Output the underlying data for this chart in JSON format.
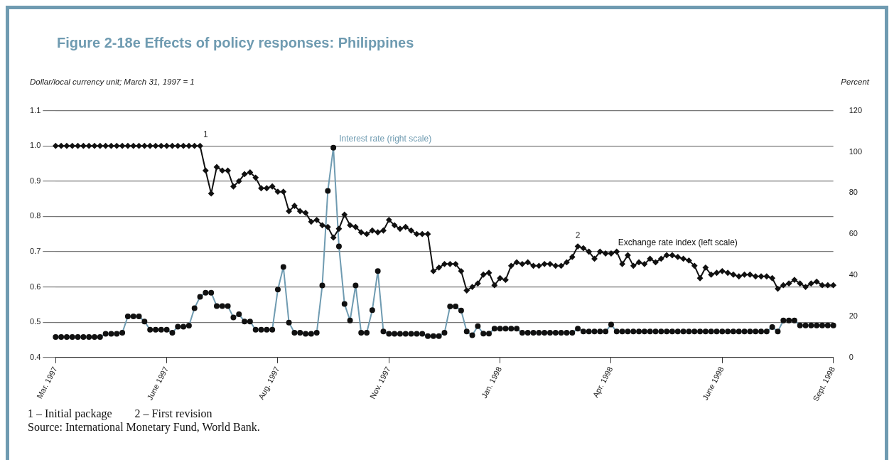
{
  "chart_data": {
    "type": "line",
    "title": "Figure 2-18e Effects of policy responses: Philippines",
    "ylabel": "Dollar/local currency unit; March 31, 1997 = 1",
    "y2label": "Percent",
    "categories": [
      "Mar. 1997",
      null,
      null,
      null,
      null,
      null,
      null,
      null,
      null,
      null,
      null,
      null,
      null,
      null,
      null,
      null,
      null,
      null,
      null,
      null,
      "June 1997",
      null,
      null,
      null,
      null,
      null,
      null,
      null,
      null,
      null,
      null,
      null,
      null,
      null,
      null,
      null,
      null,
      null,
      null,
      null,
      "Aug. 1997",
      null,
      null,
      null,
      null,
      null,
      null,
      null,
      null,
      null,
      null,
      null,
      null,
      null,
      null,
      null,
      null,
      null,
      null,
      null,
      "Nov. 1997",
      null,
      null,
      null,
      null,
      null,
      null,
      null,
      null,
      null,
      null,
      null,
      null,
      null,
      null,
      null,
      null,
      null,
      null,
      null,
      "Jan. 1998",
      null,
      null,
      null,
      null,
      null,
      null,
      null,
      null,
      null,
      null,
      null,
      null,
      null,
      null,
      null,
      null,
      null,
      null,
      null,
      "Apr. 1998",
      null,
      null,
      null,
      null,
      null,
      null,
      null,
      null,
      null,
      null,
      null,
      null,
      null,
      null,
      null,
      null,
      null,
      null,
      null,
      "June 1998",
      null,
      null,
      null,
      null,
      null,
      null,
      null,
      null,
      null,
      null,
      null,
      null,
      null,
      null,
      null,
      null,
      null,
      null,
      null,
      "Sept. 1998"
    ],
    "series": [
      {
        "name": "Exchange rate index (left scale)",
        "color": "#111111",
        "marker": "diamond",
        "values": [
          1.0,
          1.0,
          1.0,
          1.0,
          1.0,
          1.0,
          1.0,
          1.0,
          1.0,
          1.0,
          1.0,
          1.0,
          1.0,
          1.0,
          1.0,
          1.0,
          1.0,
          1.0,
          1.0,
          1.0,
          1.0,
          1.0,
          1.0,
          1.0,
          1.0,
          1.0,
          1.0,
          0.93,
          0.865,
          0.94,
          0.93,
          0.93,
          0.885,
          0.9,
          0.92,
          0.925,
          0.91,
          0.88,
          0.88,
          0.885,
          0.87,
          0.87,
          0.815,
          0.83,
          0.815,
          0.81,
          0.785,
          0.79,
          0.775,
          0.77,
          0.74,
          0.765,
          0.805,
          0.775,
          0.77,
          0.755,
          0.75,
          0.76,
          0.755,
          0.76,
          0.79,
          0.775,
          0.765,
          0.77,
          0.76,
          0.75,
          0.75,
          0.75,
          0.645,
          0.655,
          0.665,
          0.665,
          0.665,
          0.645,
          0.59,
          0.6,
          0.61,
          0.635,
          0.64,
          0.605,
          0.625,
          0.62,
          0.66,
          0.67,
          0.665,
          0.67,
          0.66,
          0.66,
          0.665,
          0.665,
          0.66,
          0.66,
          0.67,
          0.685,
          0.715,
          0.71,
          0.7,
          0.68,
          0.7,
          0.695,
          0.695,
          0.7,
          0.665,
          0.69,
          0.66,
          0.67,
          0.665,
          0.68,
          0.67,
          0.68,
          0.69,
          0.69,
          0.685,
          0.68,
          0.675,
          0.66,
          0.625,
          0.655,
          0.635,
          0.64,
          0.645,
          0.64,
          0.635,
          0.63,
          0.635,
          0.635,
          0.63,
          0.63,
          0.63,
          0.625,
          0.595,
          0.605,
          0.61,
          0.62,
          0.61,
          0.6,
          0.61,
          0.615,
          0.605,
          0.605,
          0.605
        ]
      },
      {
        "name": "Interest rate (right scale)",
        "color": "#6f9bb1",
        "marker": "circle",
        "axis": "y2",
        "values": [
          10,
          10,
          10,
          10,
          10,
          10,
          10,
          10,
          10,
          11.5,
          11.5,
          11.5,
          12,
          20,
          20,
          20,
          17.5,
          13.5,
          13.5,
          13.5,
          13.5,
          12,
          15,
          15,
          15.5,
          24,
          29.5,
          31.5,
          31.5,
          25,
          25,
          25,
          19.5,
          21,
          17.5,
          17.5,
          13.5,
          13.5,
          13.5,
          13.5,
          33,
          44,
          17,
          12,
          12,
          11.5,
          11.5,
          12,
          35,
          81,
          102,
          54,
          26,
          18,
          35,
          12,
          12,
          23,
          42,
          12.6,
          11.5,
          11.5,
          11.5,
          11.5,
          11.5,
          11.5,
          11.5,
          10.4,
          10.4,
          10.4,
          12,
          24.8,
          24.8,
          22.8,
          12.6,
          10.8,
          15.2,
          11.6,
          11.6,
          14,
          14,
          14,
          14,
          14,
          12,
          12,
          12,
          12,
          12,
          12,
          12,
          12,
          12,
          12,
          14,
          12.6,
          12.6,
          12.6,
          12.6,
          12.6,
          16,
          12.6,
          12.6,
          12.6,
          12.6,
          12.6,
          12.6,
          12.6,
          12.6,
          12.6,
          12.6,
          12.6,
          12.6,
          12.6,
          12.6,
          12.6,
          12.6,
          12.6,
          12.6,
          12.6,
          12.6,
          12.6,
          12.6,
          12.6,
          12.6,
          12.6,
          12.6,
          12.6,
          12.6,
          14.8,
          12.6,
          18,
          18,
          18,
          15.6,
          15.6,
          15.6,
          15.6,
          15.6,
          15.6,
          15.6
        ]
      }
    ],
    "ylim": [
      0.4,
      1.1
    ],
    "yticks": [
      0.4,
      0.5,
      0.6,
      0.7,
      0.8,
      0.9,
      {
        "value": 1,
        "label": "1.0"
      },
      1.1
    ],
    "y2lim": [
      0,
      120
    ],
    "y2ticks": [
      0,
      20,
      40,
      60,
      80,
      100,
      120
    ],
    "grid": "y",
    "legend": false,
    "annotations": [
      {
        "text": "1",
        "y": 1.0
      },
      {
        "text": "2",
        "y": 0.715
      },
      "1 – Initial package        2 – First revision",
      "Source: International Monetary Fund, World Bank."
    ]
  }
}
